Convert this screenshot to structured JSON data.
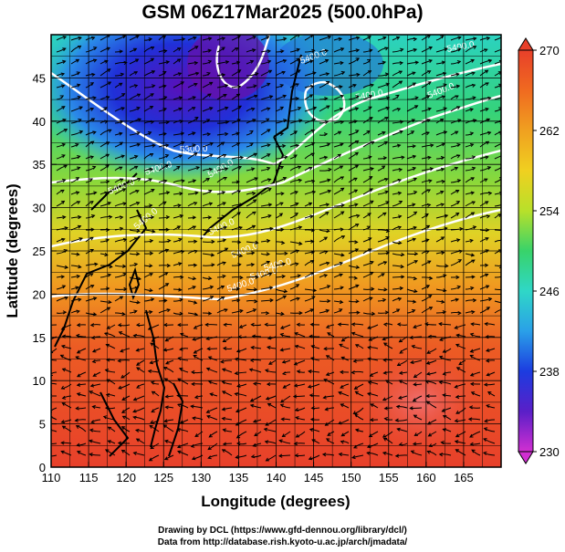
{
  "title": "GSM 06Z17Mar2025 (500.0hPa)",
  "xlabel": "Longitude (degrees)",
  "ylabel": "Latitude  (degrees)",
  "credits": {
    "line1": "Drawing by DCL (https://www.gfd-dennou.org/library/dcl/)",
    "line2": "Data from http://database.rish.kyoto-u.ac.jp/arch/jmadata/"
  },
  "chart_data": {
    "type": "heatmap",
    "title": "GSM 06Z17Mar2025 (500.0hPa)",
    "xlabel": "Longitude (degrees)",
    "ylabel": "Latitude  (degrees)",
    "xlim": [
      110,
      170
    ],
    "ylim": [
      0,
      50
    ],
    "xticks": [
      110,
      115,
      120,
      125,
      130,
      135,
      140,
      145,
      150,
      155,
      160,
      165
    ],
    "yticks": [
      0,
      5,
      10,
      15,
      20,
      25,
      30,
      35,
      40,
      45
    ],
    "grid": true,
    "colorbar": {
      "min": 230,
      "max": 270,
      "ticks": [
        230,
        238,
        246,
        254,
        262,
        270
      ],
      "colors": [
        "#d12fd1",
        "#5a1fc8",
        "#1c3ce0",
        "#2aa0e8",
        "#2fd7c7",
        "#38d36a",
        "#b8e02a",
        "#f0d020",
        "#f0a020",
        "#f06a20",
        "#e8402a"
      ]
    },
    "contour_labels": [
      "5300.0",
      "5400.0",
      "5400.0",
      "5400.0",
      "5400.0",
      "5400.0",
      "5400.0",
      "5400.0",
      "5400.0",
      "5400.0",
      "5400.0",
      "5400.0",
      "5400.0",
      "5400.0"
    ]
  }
}
